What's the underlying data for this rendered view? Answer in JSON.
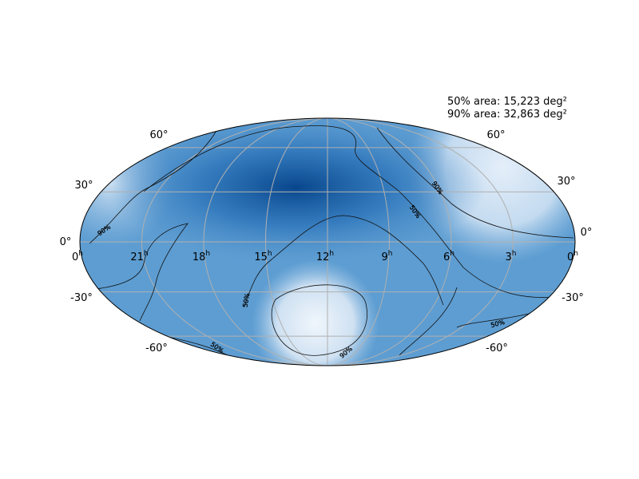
{
  "annotations": [
    "50% area: 15,223 deg²",
    "90% area: 32,863 deg²"
  ],
  "lat_labels_left": [
    "60°",
    "30°",
    "0°",
    "-30°",
    "-60°"
  ],
  "lat_labels_right": [
    "60°",
    "30°",
    "0°",
    "-30°",
    "-60°"
  ],
  "ra_labels": [
    {
      "hour": "0",
      "unit": "h"
    },
    {
      "hour": "21",
      "unit": "h"
    },
    {
      "hour": "18",
      "unit": "h"
    },
    {
      "hour": "15",
      "unit": "h"
    },
    {
      "hour": "12",
      "unit": "h"
    },
    {
      "hour": "9",
      "unit": "h"
    },
    {
      "hour": "6",
      "unit": "h"
    },
    {
      "hour": "3",
      "unit": "h"
    },
    {
      "hour": "0",
      "unit": "h"
    }
  ],
  "contour_labels": [
    "90%",
    "90%",
    "50%",
    "50%",
    "50%",
    "50%",
    "90%"
  ]
}
